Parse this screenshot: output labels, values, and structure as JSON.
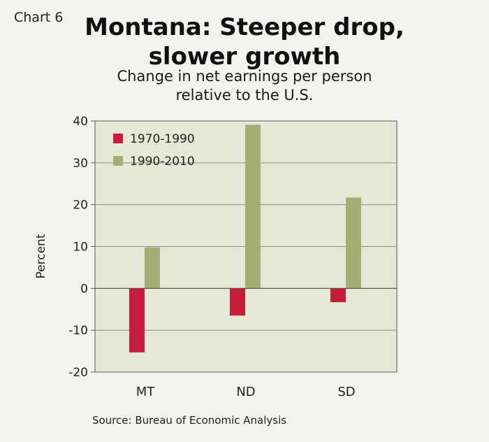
{
  "chart_number": "Chart 6",
  "title_line1": "Montana: Steeper drop,",
  "title_line2": "slower growth",
  "subtitle_line1": "Change in net earnings per person",
  "subtitle_line2": "relative to the U.S.",
  "source": "Source: Bureau of Economic Analysis",
  "colors": {
    "plot_bg": "#e6e7d4",
    "series_1970_1990": "#c41e3a",
    "series_1990_2010": "#a4ad74",
    "axis": "#555555",
    "grid": "#8a8a8a"
  },
  "chart_data": {
    "type": "bar",
    "title": "Montana: Steeper drop, slower growth",
    "subtitle": "Change in net earnings per person relative to the U.S.",
    "xlabel": "",
    "ylabel": "Percent",
    "ylim": [
      -20,
      40
    ],
    "yticks": [
      "40",
      "30",
      "20",
      "10",
      "0",
      "-10",
      "-20"
    ],
    "categories": [
      "MT",
      "ND",
      "SD"
    ],
    "series": [
      {
        "name": "1970-1990",
        "values": [
          -15.3,
          -6.5,
          -3.3
        ]
      },
      {
        "name": "1990-2010",
        "values": [
          9.8,
          39.1,
          21.7
        ]
      }
    ],
    "grid": true,
    "legend_position": "top-left"
  }
}
